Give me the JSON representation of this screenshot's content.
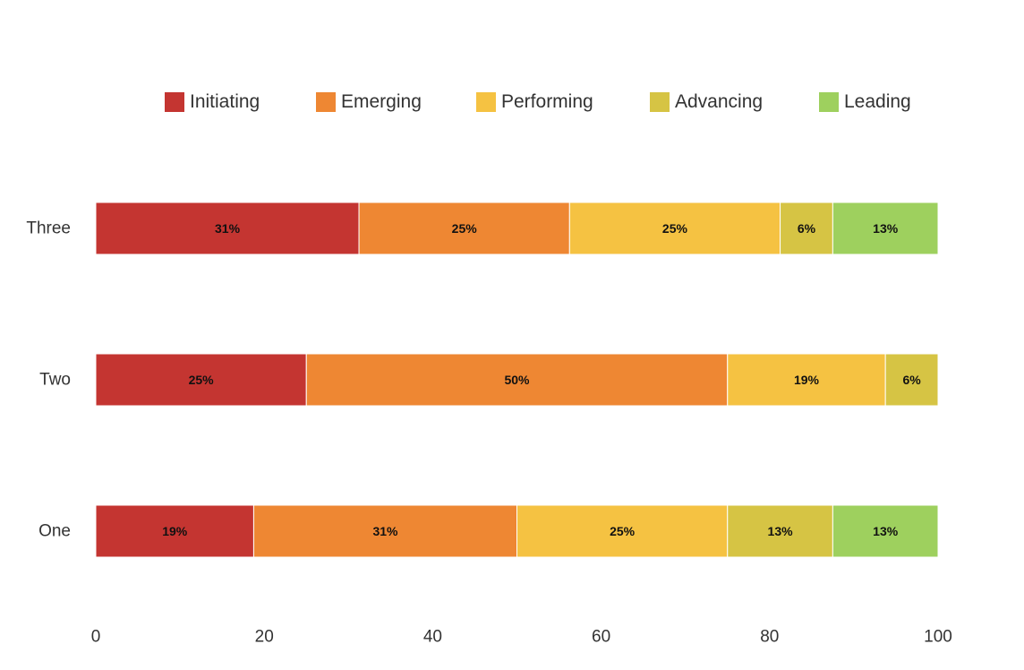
{
  "chart_data": {
    "type": "bar",
    "orientation": "horizontal",
    "stacked": true,
    "title": "",
    "xlabel": "",
    "ylabel": "",
    "categories": [
      "Three",
      "Two",
      "One"
    ],
    "series": [
      {
        "name": "Initiating",
        "color": "#c43531",
        "values": [
          31.25,
          25,
          18.75
        ],
        "labels": [
          "31%",
          "25%",
          "19%"
        ]
      },
      {
        "name": "Emerging",
        "color": "#ee8733",
        "values": [
          25,
          50,
          31.25
        ],
        "labels": [
          "25%",
          "50%",
          "31%"
        ]
      },
      {
        "name": "Performing",
        "color": "#f5c242",
        "values": [
          25,
          18.75,
          25
        ],
        "labels": [
          "25%",
          "19%",
          "25%"
        ]
      },
      {
        "name": "Advancing",
        "color": "#d6c444",
        "values": [
          6.25,
          6.25,
          12.5
        ],
        "labels": [
          "6%",
          "6%",
          "13%"
        ]
      },
      {
        "name": "Leading",
        "color": "#9ed05e",
        "values": [
          12.5,
          0,
          12.5
        ],
        "labels": [
          "13%",
          "",
          "13%"
        ]
      }
    ],
    "xlim": [
      0,
      100
    ],
    "xticks": [
      "0",
      "20",
      "40",
      "60",
      "80",
      "100"
    ],
    "grid": false,
    "legend_position": "top"
  }
}
